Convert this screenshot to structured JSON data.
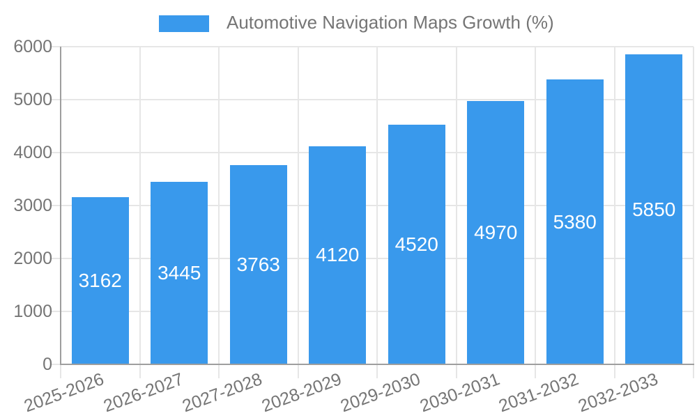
{
  "chart_data": {
    "type": "bar",
    "legend": "Automotive Navigation Maps Growth (%)",
    "legend_position": "top-center",
    "categories": [
      "2025-2026",
      "2026-2027",
      "2027-2028",
      "2028-2029",
      "2029-2030",
      "2030-2031",
      "2031-2032",
      "2032-2033"
    ],
    "values": [
      3162,
      3445,
      3763,
      4120,
      4520,
      4970,
      5380,
      5850
    ],
    "xlabel": "",
    "ylabel": "",
    "ylim": [
      0,
      6000
    ],
    "y_ticks": [
      0,
      1000,
      2000,
      3000,
      4000,
      5000,
      6000
    ],
    "grid": "horizontal and vertical, light gray",
    "x_tick_label_rotation_deg": -20,
    "value_labels": "centered inside bars",
    "colors": {
      "bar": "#3999EC",
      "value_label": "#ffffff",
      "axis_text": "#757575",
      "grid_line": "#e6e6e6",
      "axis_line": "#9e9e9e",
      "background": "#ffffff"
    }
  }
}
